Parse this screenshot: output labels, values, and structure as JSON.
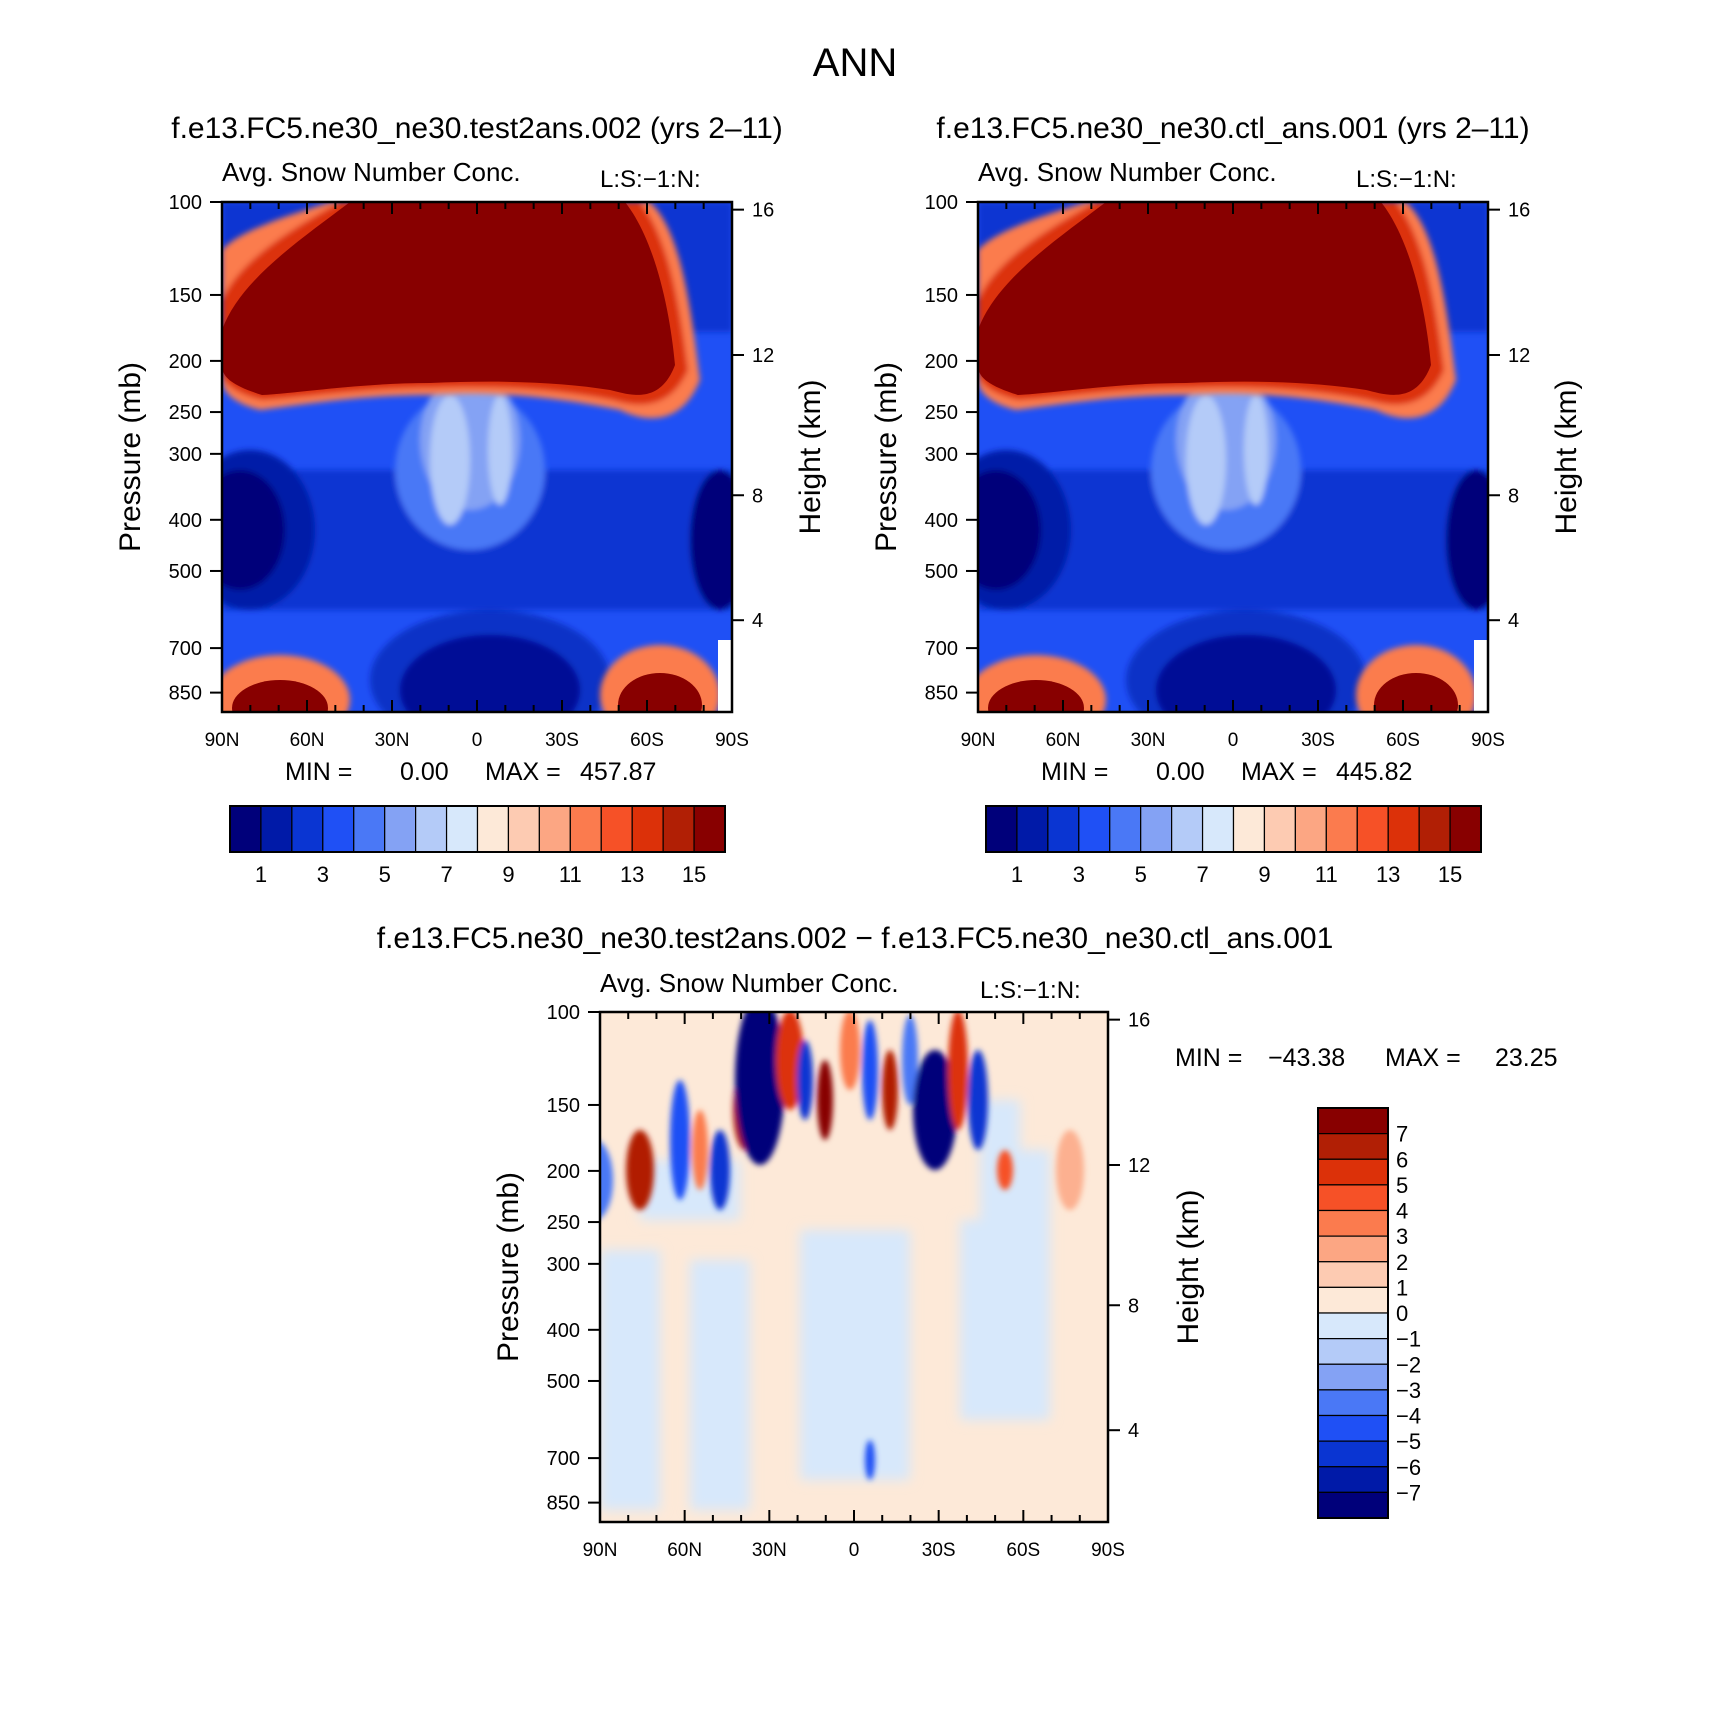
{
  "figure": {
    "title": "ANN",
    "top_left_case": "f.e13.FC5.ne30_ne30.test2ans.002 (yrs 2–11)",
    "top_right_case": "f.e13.FC5.ne30_ne30.ctl_ans.001 (yrs 2–11)",
    "diff_case": "f.e13.FC5.ne30_ne30.test2ans.002 − f.e13.FC5.ne30_ne30.ctl_ans.001",
    "variable": "Avg. Snow Number Conc.",
    "units_code": "L:S:−1:N:",
    "ylabel": "Pressure (mb)",
    "ylabel_right": "Height (km)"
  },
  "chart_data": [
    {
      "type": "heatmap",
      "panel": "test",
      "x_ticks": [
        "90N",
        "60N",
        "30N",
        "0",
        "30S",
        "60S",
        "90S"
      ],
      "y_ticks": [
        "100",
        "150",
        "200",
        "250",
        "300",
        "400",
        "500",
        "700",
        "850"
      ],
      "y_ticks_right": [
        "16",
        "12",
        "8",
        "4"
      ],
      "stats": {
        "min_label": "MIN =",
        "min": "0.00",
        "max_label": "MAX =",
        "max": "457.87"
      },
      "colorbar": {
        "labels": [
          "1",
          "3",
          "5",
          "7",
          "9",
          "11",
          "13",
          "15"
        ],
        "colors": [
          "#00007a",
          "#001aa8",
          "#0a35d2",
          "#1f50f5",
          "#4a78f6",
          "#84a2f4",
          "#b4cbf8",
          "#d7e8fb",
          "#fde9d8",
          "#fdcbb2",
          "#fca683",
          "#fb7b4e",
          "#f65127",
          "#dc3109",
          "#b11f05",
          "#880000"
        ]
      }
    },
    {
      "type": "heatmap",
      "panel": "control",
      "x_ticks": [
        "90N",
        "60N",
        "30N",
        "0",
        "30S",
        "60S",
        "90S"
      ],
      "y_ticks": [
        "100",
        "150",
        "200",
        "250",
        "300",
        "400",
        "500",
        "700",
        "850"
      ],
      "y_ticks_right": [
        "16",
        "12",
        "8",
        "4"
      ],
      "stats": {
        "min_label": "MIN =",
        "min": "0.00",
        "max_label": "MAX =",
        "max": "445.82"
      },
      "colorbar": {
        "labels": [
          "1",
          "3",
          "5",
          "7",
          "9",
          "11",
          "13",
          "15"
        ],
        "colors": [
          "#00007a",
          "#001aa8",
          "#0a35d2",
          "#1f50f5",
          "#4a78f6",
          "#84a2f4",
          "#b4cbf8",
          "#d7e8fb",
          "#fde9d8",
          "#fdcbb2",
          "#fca683",
          "#fb7b4e",
          "#f65127",
          "#dc3109",
          "#b11f05",
          "#880000"
        ]
      }
    },
    {
      "type": "heatmap",
      "panel": "difference",
      "x_ticks": [
        "90N",
        "60N",
        "30N",
        "0",
        "30S",
        "60S",
        "90S"
      ],
      "y_ticks": [
        "100",
        "150",
        "200",
        "250",
        "300",
        "400",
        "500",
        "700",
        "850"
      ],
      "y_ticks_right": [
        "16",
        "12",
        "8",
        "4"
      ],
      "stats": {
        "min_label": "MIN =",
        "min": "−43.38",
        "max_label": "MAX =",
        "max": "23.25"
      },
      "colorbar": {
        "labels": [
          "7",
          "6",
          "5",
          "4",
          "3",
          "2",
          "1",
          "0",
          "−1",
          "−2",
          "−3",
          "−4",
          "−5",
          "−6",
          "−7"
        ],
        "colors": [
          "#880000",
          "#b11f05",
          "#dc3109",
          "#f65127",
          "#fb7b4e",
          "#fca683",
          "#fdcbb2",
          "#fde9d8",
          "#d7e8fb",
          "#b4cbf8",
          "#84a2f4",
          "#4a78f6",
          "#1f50f5",
          "#0a35d2",
          "#001aa8",
          "#00007a"
        ]
      }
    }
  ]
}
